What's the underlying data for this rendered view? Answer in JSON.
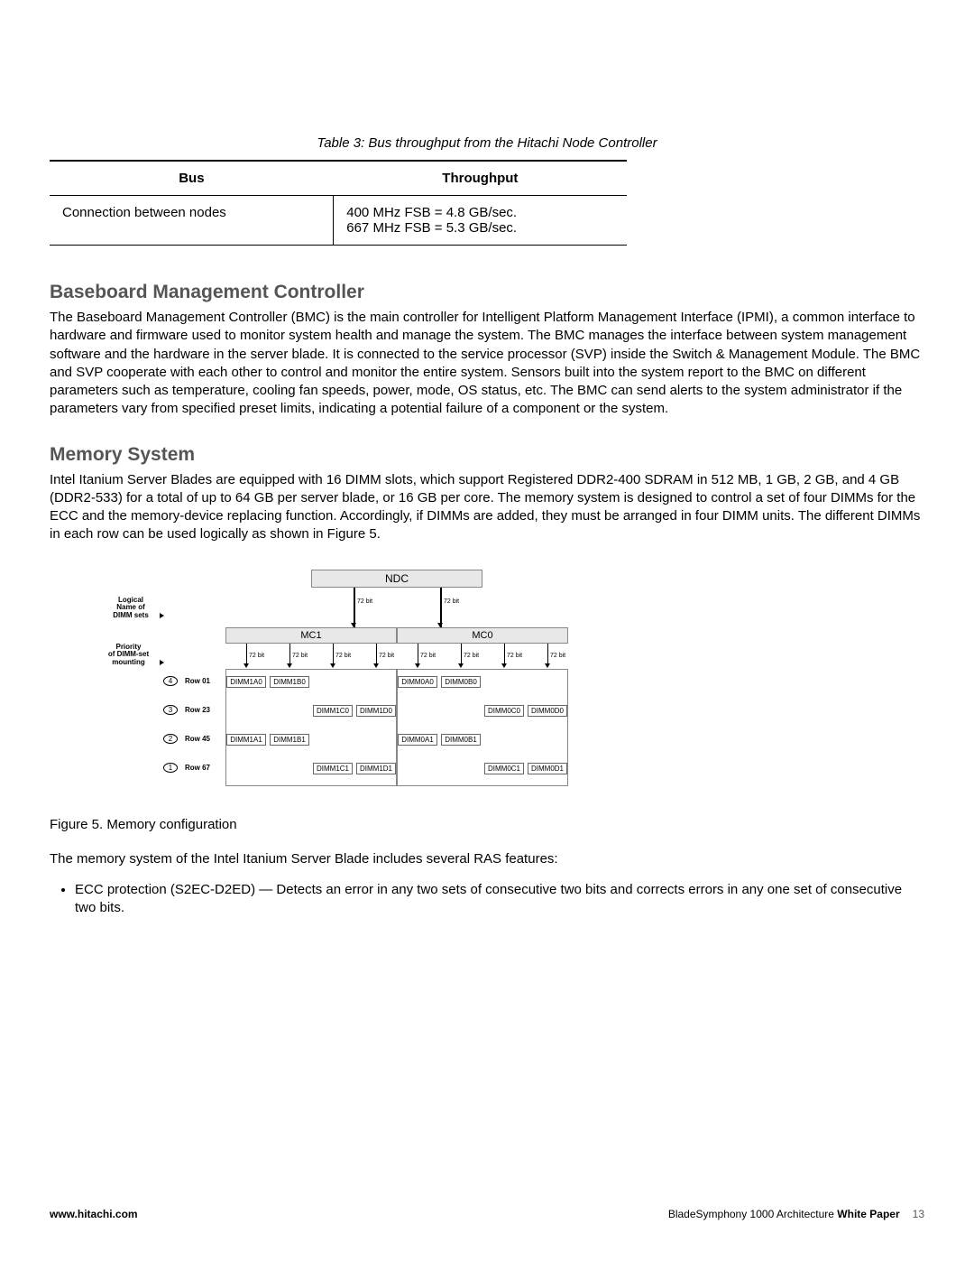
{
  "table": {
    "caption": "Table 3: Bus throughput from the Hitachi Node Controller",
    "headers": {
      "bus": "Bus",
      "throughput": "Throughput"
    },
    "row": {
      "bus": "Connection between nodes",
      "throughput": "400 MHz FSB = 4.8 GB/sec.\n667 MHz FSB = 5.3 GB/sec."
    }
  },
  "section1": {
    "heading": "Baseboard Management Controller",
    "body": "The Baseboard Management Controller (BMC) is the main controller for Intelligent Platform Management Interface (IPMI), a common interface to hardware and firmware used to monitor system health and manage the system. The BMC manages the interface between system management software and the hardware in the server blade. It is connected to the service processor (SVP) inside the Switch & Management Module. The BMC and SVP cooperate with each other to control and monitor the entire system. Sensors built into the system report to the BMC on different parameters such as temperature, cooling fan speeds, power, mode, OS status, etc. The BMC can send alerts to the system administrator if the parameters vary from specified preset limits, indicating a potential failure of a component or the system."
  },
  "section2": {
    "heading": "Memory System",
    "body": "Intel Itanium Server Blades are equipped with 16 DIMM slots, which support Registered DDR2-400 SDRAM in 512 MB, 1 GB, 2 GB, and 4 GB (DDR2-533) for a total of up to 64 GB per server blade, or 16 GB per core. The memory system is designed to control a set of four DIMMs for the ECC and the memory-device replacing function. Accordingly, if DIMMs are added, they must be arranged in four DIMM units. The different DIMMs in each row can be used logically as shown in Figure 5."
  },
  "diagram": {
    "ndc": "NDC",
    "mc1": "MC1",
    "mc0": "MC0",
    "bit": "72 bit",
    "side_logical": "Logical\nName of\nDIMM sets",
    "side_priority": "Priority\nof DIMM-set\nmounting",
    "rows": [
      {
        "p": "4",
        "label": "Row 01",
        "dimms_left": [
          "DIMM1A0",
          "DIMM1B0"
        ],
        "dimms_right": [
          "DIMM0A0",
          "DIMM0B0"
        ]
      },
      {
        "p": "3",
        "label": "Row 23",
        "dimms_left": [
          "DIMM1C0",
          "DIMM1D0"
        ],
        "dimms_right": [
          "DIMM0C0",
          "DIMM0D0"
        ]
      },
      {
        "p": "2",
        "label": "Row 45",
        "dimms_left": [
          "DIMM1A1",
          "DIMM1B1"
        ],
        "dimms_right": [
          "DIMM0A1",
          "DIMM0B1"
        ]
      },
      {
        "p": "1",
        "label": "Row 67",
        "dimms_left": [
          "DIMM1C1",
          "DIMM1D1"
        ],
        "dimms_right": [
          "DIMM0C1",
          "DIMM0D1"
        ]
      }
    ],
    "colors": {
      "box_fill": "#e8e8e8",
      "box_border": "#888888",
      "dimm_border": "#666666"
    }
  },
  "figcaption": "Figure 5. Memory configuration",
  "after_fig": "The memory system of the Intel Itanium Server Blade includes several RAS features:",
  "bullet1": "ECC protection (S2EC-D2ED) — Detects an error in any two sets of consecutive two bits and corrects errors in any one set of consecutive two bits.",
  "footer": {
    "left": "www.hitachi.com",
    "right_plain": "BladeSymphony 1000 Architecture ",
    "right_bold": "White Paper",
    "page": "13"
  }
}
